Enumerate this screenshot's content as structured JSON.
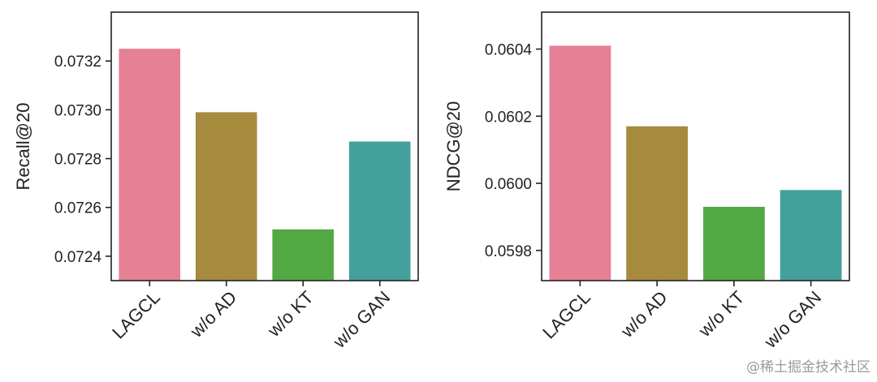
{
  "chart_data": [
    {
      "type": "bar",
      "title": "",
      "xlabel": "",
      "ylabel": "Recall@20",
      "categories": [
        "LAGCL",
        "w/o AD",
        "w/o KT",
        "w/o GAN"
      ],
      "values": [
        0.07325,
        0.07299,
        0.07251,
        0.07287
      ],
      "ylim": [
        0.0723,
        0.0734
      ],
      "yticks": [
        0.0724,
        0.0726,
        0.0728,
        0.073,
        0.0732
      ],
      "ytick_labels": [
        "0.0724",
        "0.0726",
        "0.0728",
        "0.0730",
        "0.0732"
      ],
      "colors": [
        "#e68095",
        "#a68a3e",
        "#52a843",
        "#44a09c"
      ],
      "grid": false
    },
    {
      "type": "bar",
      "title": "",
      "xlabel": "",
      "ylabel": "NDCG@20",
      "categories": [
        "LAGCL",
        "w/o AD",
        "w/o KT",
        "w/o GAN"
      ],
      "values": [
        0.06041,
        0.06017,
        0.05993,
        0.05998
      ],
      "ylim": [
        0.05971,
        0.06051
      ],
      "yticks": [
        0.0598,
        0.06,
        0.0602,
        0.0604
      ],
      "ytick_labels": [
        "0.0598",
        "0.0600",
        "0.0602",
        "0.0604"
      ],
      "colors": [
        "#e68095",
        "#a68a3e",
        "#52a843",
        "#44a09c"
      ],
      "grid": false
    }
  ],
  "watermark": "@稀土掘金技术社区"
}
